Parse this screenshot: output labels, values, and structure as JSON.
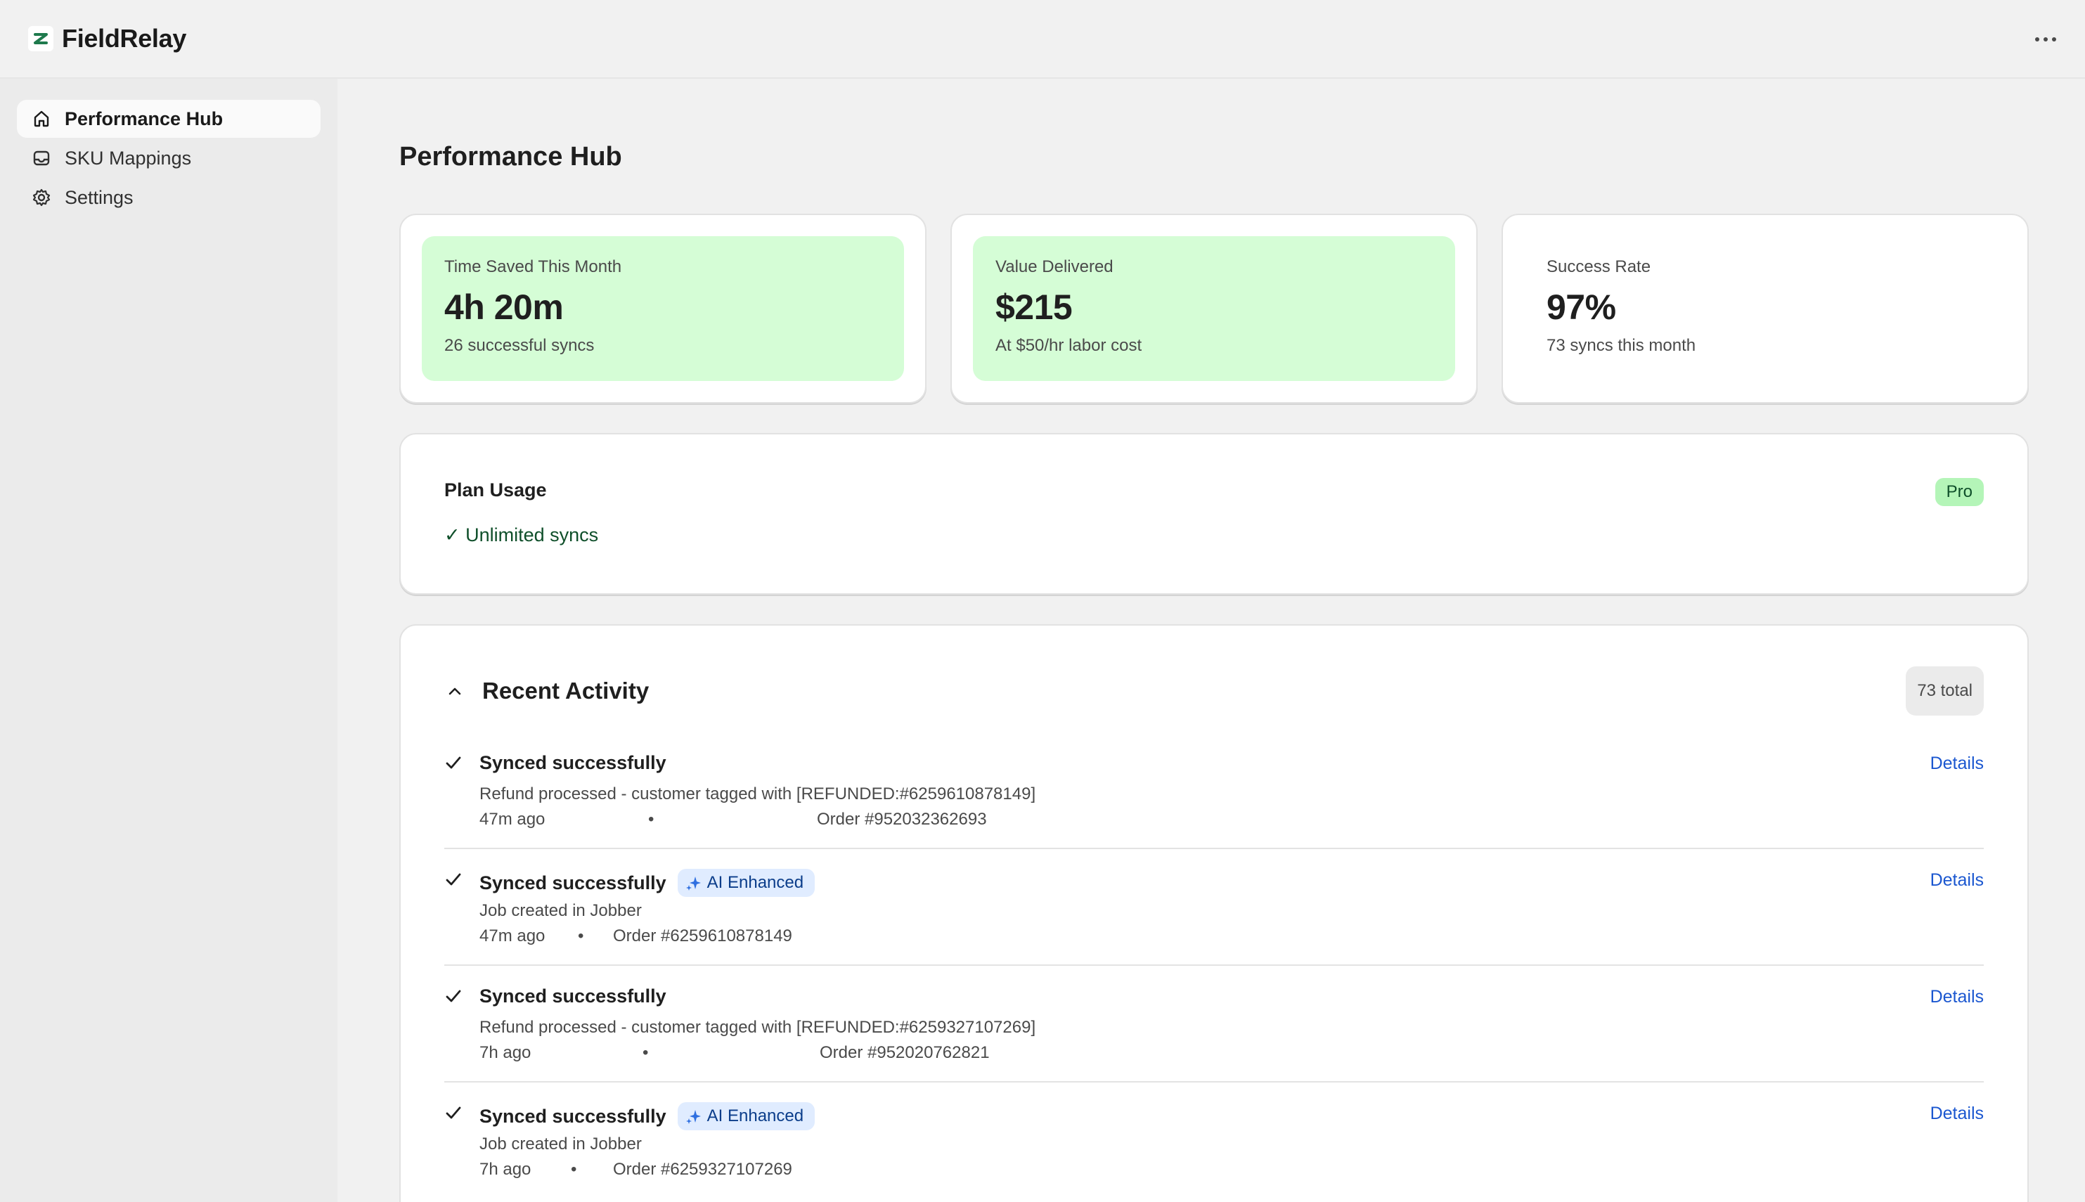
{
  "app": {
    "name": "FieldRelay",
    "logo_icon": "fieldrelay-logo-icon",
    "more_icon": "more-horizontal-icon"
  },
  "sidebar": {
    "items": [
      {
        "label": "Performance Hub",
        "icon": "home-icon",
        "active": true
      },
      {
        "label": "SKU Mappings",
        "icon": "inbox-icon",
        "active": false
      },
      {
        "label": "Settings",
        "icon": "gear-icon",
        "active": false
      }
    ]
  },
  "page": {
    "title": "Performance Hub"
  },
  "stats": [
    {
      "label": "Time Saved This Month",
      "value": "4h 20m",
      "sub": "26 successful syncs",
      "highlight_color": "#d5fdd6"
    },
    {
      "label": "Value Delivered",
      "value": "$215",
      "sub": "At $50/hr labor cost",
      "highlight_color": "#d5fdd6"
    },
    {
      "label": "Success Rate",
      "value": "97%",
      "sub": "73 syncs this month",
      "highlight_color": "#ffffff"
    }
  ],
  "plan": {
    "title": "Plan Usage",
    "feature": "✓ Unlimited syncs",
    "badge": "Pro"
  },
  "activity": {
    "title": "Recent Activity",
    "total": "73 total",
    "rows": [
      {
        "status": "Synced successfully",
        "ai_badge": "",
        "description": "Refund processed - customer tagged with [REFUNDED:#6259610878149]",
        "time": "47m ago",
        "order": "Order #952032362693",
        "details": "Details"
      },
      {
        "status": "Synced successfully",
        "ai_badge": "AI Enhanced",
        "description": "Job created in Jobber",
        "time": "47m ago",
        "order": "Order #6259610878149",
        "details": "Details"
      },
      {
        "status": "Synced successfully",
        "ai_badge": "",
        "description": "Refund processed - customer tagged with [REFUNDED:#6259327107269]",
        "time": "7h ago",
        "order": "Order #952020762821",
        "details": "Details"
      },
      {
        "status": "Synced successfully",
        "ai_badge": "AI Enhanced",
        "description": "Job created in Jobber",
        "time": "7h ago",
        "order": "Order #6259327107269",
        "details": "Details"
      }
    ]
  },
  "colors": {
    "accent_link": "#1b57d0",
    "success_bg": "#d5fdd6",
    "pro_badge_bg": "#b4f5b8",
    "ai_badge_bg": "#e0ecff"
  }
}
